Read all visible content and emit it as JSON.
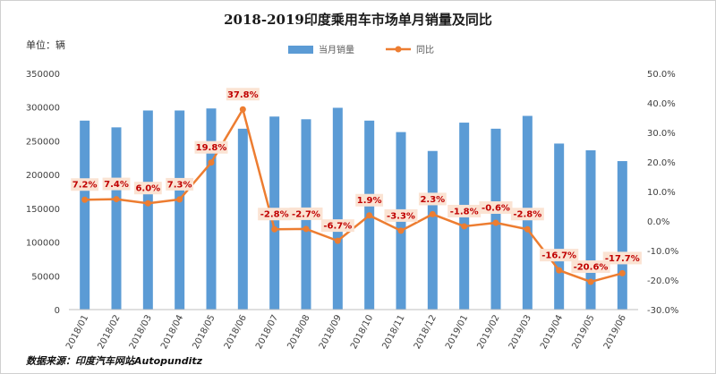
{
  "chart_data": {
    "type": "bar+line",
    "title": "2018-2019印度乘用车市场单月销量及同比",
    "unit_label": "单位：辆",
    "source": "数据来源：印度汽车网站Autopunditz",
    "categories": [
      "2018/01",
      "2018/02",
      "2018/03",
      "2018/04",
      "2018/05",
      "2018/06",
      "2018/07",
      "2018/08",
      "2018/09",
      "2018/10",
      "2018/11",
      "2018/12",
      "2019/01",
      "2019/02",
      "2019/03",
      "2019/04",
      "2019/05",
      "2019/06"
    ],
    "series": [
      {
        "name": "当月销量",
        "type": "bar",
        "axis": "left",
        "color": "#5b9bd5",
        "values": [
          280000,
          270000,
          295000,
          295000,
          298000,
          268000,
          286000,
          282000,
          299000,
          280000,
          263000,
          235000,
          277000,
          268000,
          287000,
          246000,
          236000,
          220000
        ]
      },
      {
        "name": "同比",
        "type": "line",
        "axis": "right",
        "color": "#ed7d31",
        "values": [
          7.2,
          7.4,
          6.0,
          7.3,
          19.8,
          37.8,
          -2.8,
          -2.7,
          -6.7,
          1.9,
          -3.3,
          2.3,
          -1.8,
          -0.6,
          -2.8,
          -16.7,
          -20.6,
          -17.7
        ],
        "labels": [
          "7.2%",
          "7.4%",
          "6.0%",
          "7.3%",
          "19.8%",
          "37.8%",
          "-2.8%",
          "-2.7%",
          "-6.7%",
          "1.9%",
          "-3.3%",
          "2.3%",
          "-1.8%",
          "-0.6%",
          "-2.8%",
          "-16.7%",
          "-20.6%",
          "-17.7%"
        ]
      }
    ],
    "y_left": {
      "min": 0,
      "max": 350000,
      "step": 50000,
      "tick_labels": [
        "0",
        "50000",
        "100000",
        "150000",
        "200000",
        "250000",
        "300000",
        "350000"
      ]
    },
    "y_right": {
      "min": -30,
      "max": 50,
      "step": 10,
      "tick_labels": [
        "-30.0%",
        "-20.0%",
        "-10.0%",
        "0.0%",
        "10.0%",
        "20.0%",
        "30.0%",
        "40.0%",
        "50.0%"
      ]
    },
    "legend_position": "top-center",
    "grid": false
  }
}
